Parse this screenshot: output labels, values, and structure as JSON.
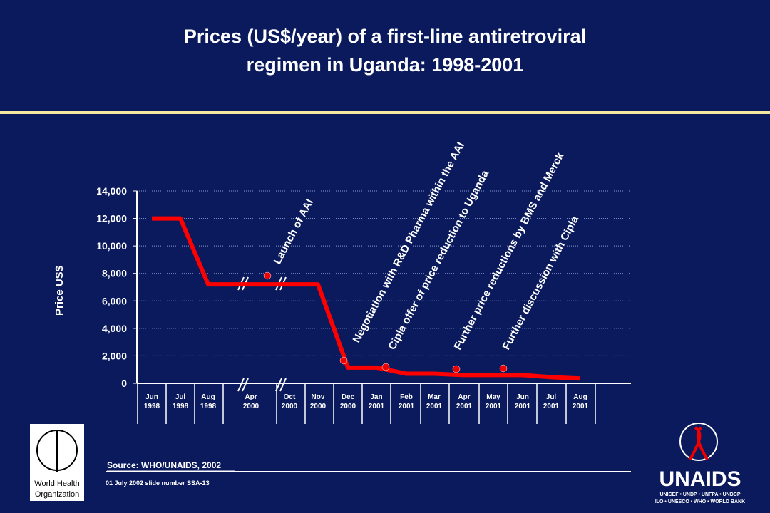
{
  "chart_data": {
    "type": "line",
    "title_lines": [
      "Prices (US$/year) of a first-line antiretroviral",
      "regimen in Uganda:   1998-2001"
    ],
    "y_label": "Price US$",
    "categories": [
      "Jun 1998",
      "Jul 1998",
      "Aug 1998",
      "Apr 2000",
      "Oct 2000",
      "Nov 2000",
      "Dec 2000",
      "Jan 2001",
      "Feb 2001",
      "Mar 2001",
      "Apr 2001",
      "May 2001",
      "Jun 2001",
      "Jul 2001",
      "Aug 2001"
    ],
    "series": [
      {
        "name": "Price",
        "color": "#ff0000",
        "values": [
          12000,
          12000,
          7200,
          7200,
          7200,
          7200,
          1150,
          1150,
          700,
          700,
          600,
          600,
          600,
          450,
          350
        ]
      }
    ],
    "ylim": [
      0,
      14000
    ],
    "yticks": [
      0,
      {
        "value": 2000,
        "label": "2,000"
      },
      {
        "value": 4000,
        "label": "4,000"
      },
      {
        "value": 6000,
        "label": "6,000"
      },
      {
        "value": 8000,
        "label": "8,000"
      },
      {
        "value": 10000,
        "label": "10,000"
      },
      {
        "value": 12000,
        "label": "12,000"
      },
      {
        "value": 14000,
        "label": "14,000"
      }
    ],
    "grid": true,
    "annotations": [
      "Launch of AAI",
      "Negotiation with R&D Pharma within the AAI",
      "Cipla offer of price reduction to Uganda",
      "Further price reductions by BMS and Merck",
      "Further discussion with Cipla"
    ],
    "source": "Source:  WHO/UNAIDS,  2002",
    "footnote": "01 July 2002 slide number SSA-13"
  },
  "logos": {
    "who": [
      "World Health",
      "Organization"
    ],
    "unaids": "UNAIDS",
    "unaids_partners": [
      "UNICEF • UNDP • UNFPA • UNDCP",
      "ILO • UNESCO • WHO • WORLD BANK"
    ]
  }
}
